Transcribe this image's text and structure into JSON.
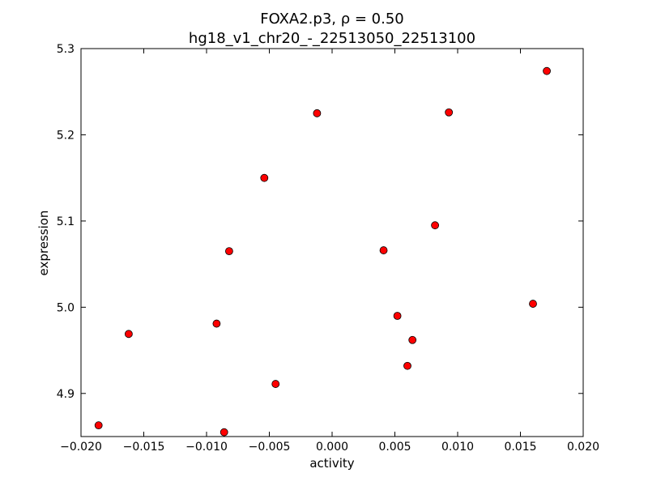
{
  "chart_data": {
    "type": "scatter",
    "title_line1": "FOXA2.p3, ρ = 0.50",
    "title_line2": "hg18_v1_chr20_-_22513050_22513100",
    "xlabel": "activity",
    "ylabel": "expression",
    "xlim": [
      -0.02,
      0.02
    ],
    "ylim": [
      4.85,
      5.3
    ],
    "x_ticks": [
      -0.02,
      -0.015,
      -0.01,
      -0.005,
      0.0,
      0.005,
      0.01,
      0.015,
      0.02
    ],
    "x_tick_labels": [
      "−0.020",
      "−0.015",
      "−0.010",
      "−0.005",
      "0.000",
      "0.005",
      "0.010",
      "0.015",
      "0.020"
    ],
    "y_ticks": [
      4.9,
      5.0,
      5.1,
      5.2,
      5.3
    ],
    "y_tick_labels": [
      "4.9",
      "5.0",
      "5.1",
      "5.2",
      "5.3"
    ],
    "marker_color": "#ff0000",
    "marker_edge_color": "#000000",
    "grid": false,
    "points": [
      {
        "x": -0.0186,
        "y": 4.863
      },
      {
        "x": -0.0162,
        "y": 4.969
      },
      {
        "x": -0.0092,
        "y": 4.981
      },
      {
        "x": -0.0086,
        "y": 4.855
      },
      {
        "x": -0.0082,
        "y": 5.065
      },
      {
        "x": -0.0054,
        "y": 5.15
      },
      {
        "x": -0.0045,
        "y": 4.911
      },
      {
        "x": -0.0012,
        "y": 5.225
      },
      {
        "x": 0.0041,
        "y": 5.066
      },
      {
        "x": 0.0052,
        "y": 4.99
      },
      {
        "x": 0.006,
        "y": 4.932
      },
      {
        "x": 0.0064,
        "y": 4.962
      },
      {
        "x": 0.0082,
        "y": 5.095
      },
      {
        "x": 0.0093,
        "y": 5.226
      },
      {
        "x": 0.016,
        "y": 5.004
      },
      {
        "x": 0.0171,
        "y": 5.274
      }
    ]
  }
}
